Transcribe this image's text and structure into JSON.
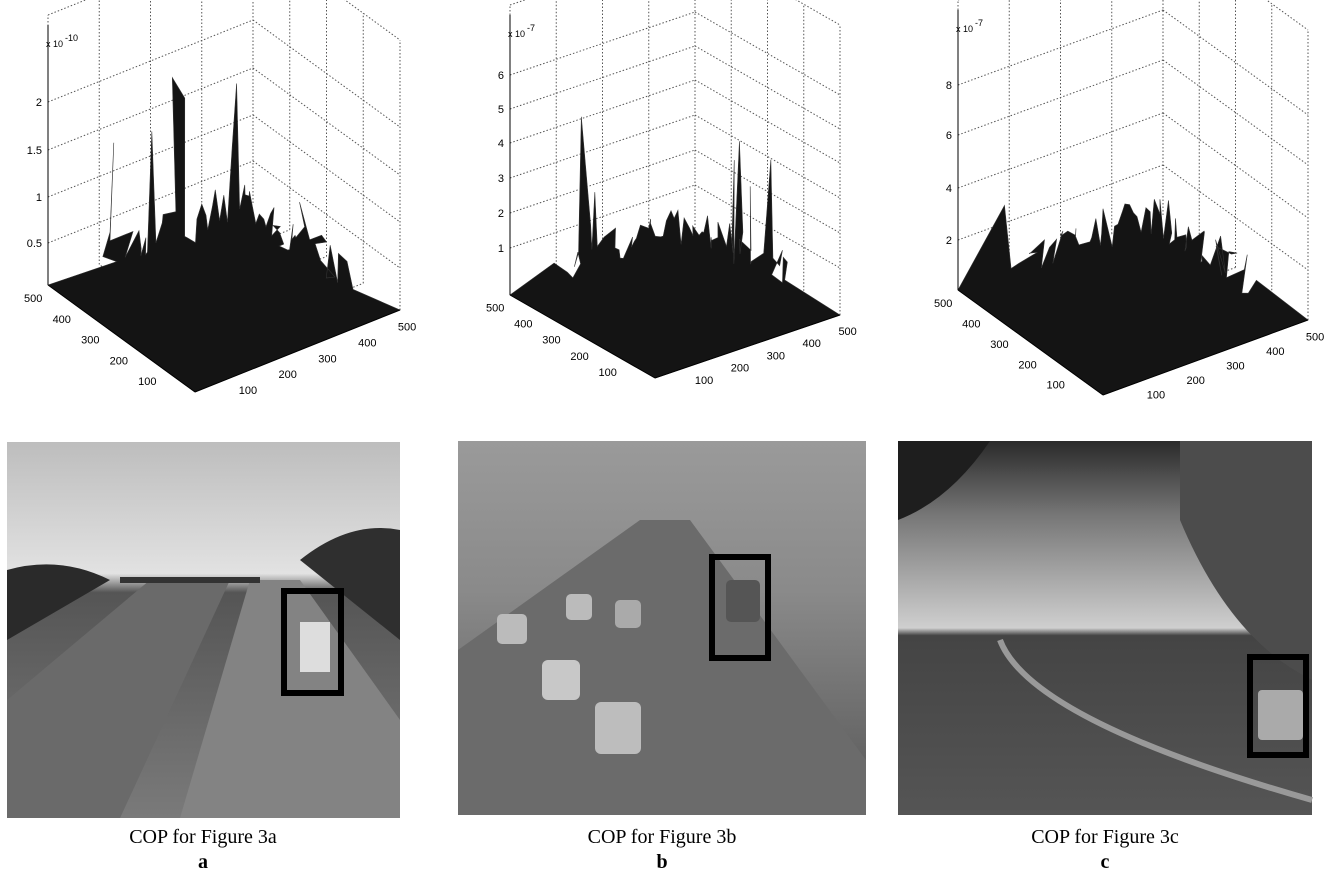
{
  "panels": [
    {
      "exponent_base": "x 10",
      "exponent_power": "-10",
      "zticks": [
        "0.5",
        "1",
        "1.5",
        "2"
      ],
      "xticks": [
        "100",
        "200",
        "300",
        "400",
        "500"
      ],
      "yticks": [
        "100",
        "200",
        "300",
        "400",
        "500"
      ],
      "caption": "COP for Figure 3a",
      "letter": "a"
    },
    {
      "exponent_base": "x 10",
      "exponent_power": "-7",
      "zticks": [
        "1",
        "2",
        "3",
        "4",
        "5",
        "6"
      ],
      "xticks": [
        "100",
        "200",
        "300",
        "400",
        "500"
      ],
      "yticks": [
        "100",
        "200",
        "300",
        "400",
        "500"
      ],
      "caption": "COP for Figure 3b",
      "letter": "b"
    },
    {
      "exponent_base": "x 10",
      "exponent_power": "-7",
      "zticks": [
        "2",
        "4",
        "6",
        "8"
      ],
      "xticks": [
        "100",
        "200",
        "300",
        "400",
        "500"
      ],
      "yticks": [
        "100",
        "200",
        "300",
        "400",
        "500"
      ],
      "caption": "COP for Figure 3c",
      "letter": "c"
    }
  ]
}
